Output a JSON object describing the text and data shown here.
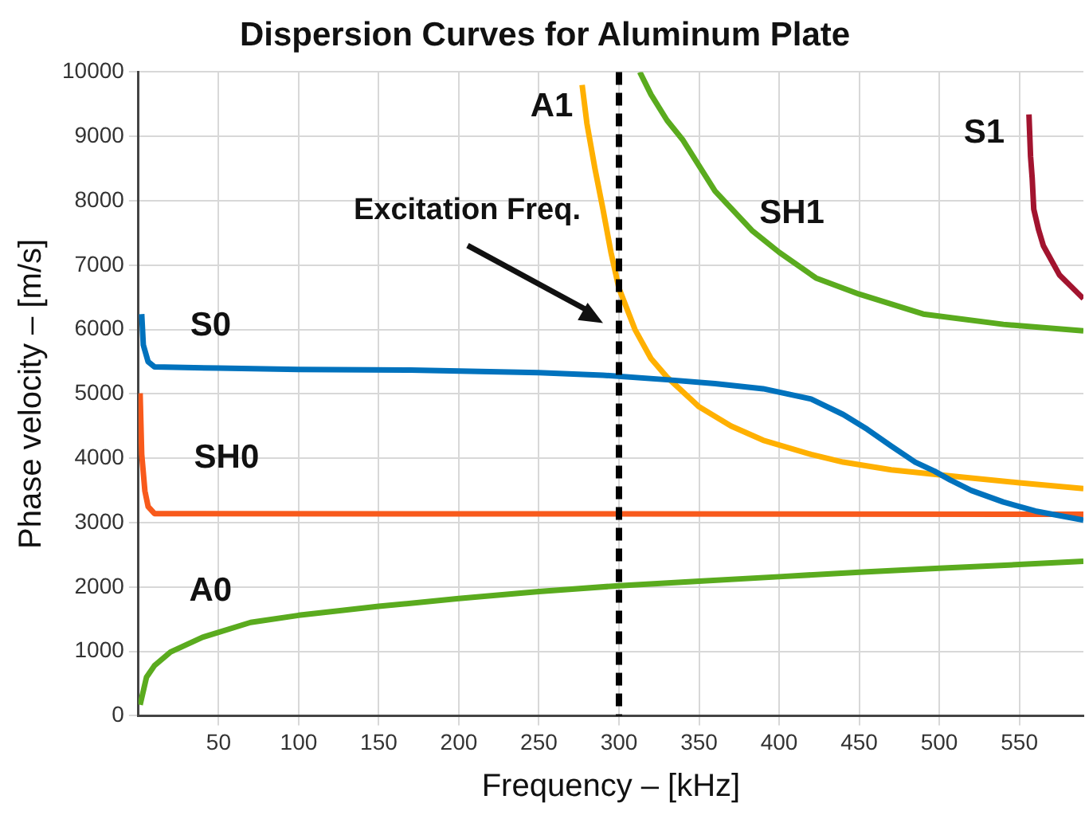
{
  "chart_data": {
    "type": "line",
    "title": "Dispersion Curves for Aluminum Plate",
    "xlabel": "Frequency – [kHz]",
    "ylabel": "Phase velocity – [m/s]",
    "xlim": [
      0,
      590
    ],
    "ylim": [
      0,
      10000
    ],
    "xticks": [
      50,
      100,
      150,
      200,
      250,
      300,
      350,
      400,
      450,
      500,
      550
    ],
    "yticks": [
      0,
      1000,
      2000,
      3000,
      4000,
      5000,
      6000,
      7000,
      8000,
      9000,
      10000
    ],
    "grid": true,
    "legend": false,
    "marker": "none",
    "line_style": "solid",
    "ref_lines": [
      {
        "axis": "x",
        "value": 300,
        "label": "Excitation Freq.",
        "color": "#000000",
        "line_style": "dashed"
      }
    ],
    "series": [
      {
        "name": "S0",
        "color": "#0072bd",
        "x": [
          2,
          3,
          6,
          10,
          50,
          100,
          170,
          250,
          290,
          330,
          360,
          390,
          420,
          440,
          455,
          470,
          485,
          497,
          507,
          520,
          540,
          560,
          590
        ],
        "values": [
          6240,
          5760,
          5500,
          5420,
          5400,
          5380,
          5370,
          5330,
          5290,
          5220,
          5160,
          5080,
          4920,
          4680,
          4450,
          4190,
          3940,
          3800,
          3660,
          3500,
          3320,
          3180,
          3040
        ]
      },
      {
        "name": "SH0",
        "color": "#f85a1c",
        "x": [
          1,
          2,
          4,
          6,
          10,
          590
        ],
        "values": [
          5010,
          4060,
          3490,
          3250,
          3140,
          3130
        ]
      },
      {
        "name": "A0",
        "color": "#5aab1e",
        "x": [
          1,
          5,
          10,
          20,
          40,
          70,
          100,
          150,
          200,
          250,
          300,
          350,
          400,
          450,
          500,
          550,
          590
        ],
        "values": [
          170,
          600,
          780,
          990,
          1220,
          1450,
          1560,
          1700,
          1820,
          1930,
          2020,
          2090,
          2160,
          2230,
          2290,
          2350,
          2400
        ]
      },
      {
        "name": "A1",
        "color": "#ffb000",
        "x": [
          277,
          280,
          285,
          290,
          295,
          300,
          310,
          320,
          330,
          350,
          370,
          390,
          420,
          440,
          470,
          505,
          550,
          590
        ],
        "values": [
          9800,
          9200,
          8500,
          7870,
          7200,
          6640,
          6000,
          5550,
          5260,
          4800,
          4500,
          4280,
          4060,
          3940,
          3820,
          3730,
          3620,
          3530
        ]
      },
      {
        "name": "SH1",
        "color": "#5aab1e",
        "x": [
          313,
          320,
          330,
          340,
          360,
          383,
          400,
          423,
          450,
          490,
          540,
          590
        ],
        "values": [
          10000,
          9650,
          9250,
          8940,
          8150,
          7540,
          7200,
          6800,
          6550,
          6240,
          6080,
          5980
        ]
      },
      {
        "name": "S1",
        "color": "#a2142f",
        "x": [
          556,
          557,
          558,
          559,
          562,
          565,
          575,
          590
        ],
        "values": [
          9340,
          8690,
          8360,
          7870,
          7550,
          7300,
          6850,
          6480
        ]
      }
    ]
  }
}
